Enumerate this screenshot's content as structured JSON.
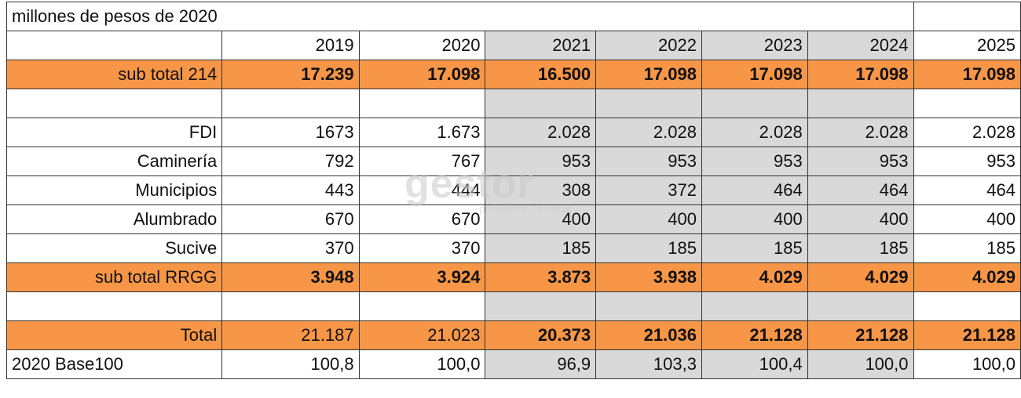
{
  "table": {
    "title": "millones de pesos de 2020",
    "header": [
      "2019",
      "2020",
      "2021",
      "2022",
      "2023",
      "2024",
      "2025"
    ],
    "rows": [
      {
        "label": "sub total 214",
        "cells": [
          "17.239",
          "17.098",
          "16.500",
          "17.098",
          "17.098",
          "17.098",
          "17.098"
        ]
      },
      {
        "label": "FDI",
        "cells": [
          "1673",
          "1.673",
          "2.028",
          "2.028",
          "2.028",
          "2.028",
          "2.028"
        ]
      },
      {
        "label": "Caminería",
        "cells": [
          "792",
          "767",
          "953",
          "953",
          "953",
          "953",
          "953"
        ]
      },
      {
        "label": "Municipios",
        "cells": [
          "443",
          "444",
          "308",
          "372",
          "464",
          "464",
          "464"
        ]
      },
      {
        "label": "Alumbrado",
        "cells": [
          "670",
          "670",
          "400",
          "400",
          "400",
          "400",
          "400"
        ]
      },
      {
        "label": "Sucive",
        "cells": [
          "370",
          "370",
          "185",
          "185",
          "185",
          "185",
          "185"
        ]
      },
      {
        "label": "sub total RRGG",
        "cells": [
          "3.948",
          "3.924",
          "3.873",
          "3.938",
          "4.029",
          "4.029",
          "4.029"
        ]
      },
      {
        "label": "Total",
        "cells": [
          "21.187",
          "21.023",
          "20.373",
          "21.036",
          "21.128",
          "21.128",
          "21.128"
        ]
      },
      {
        "label": "2020 Base100",
        "cells": [
          "100,8",
          "100,0",
          "96,9",
          "103,3",
          "100,4",
          "100,0",
          "100,0"
        ]
      }
    ]
  },
  "watermark": {
    "text": "gestor",
    "tagline": "periodismo 24 horas"
  }
}
